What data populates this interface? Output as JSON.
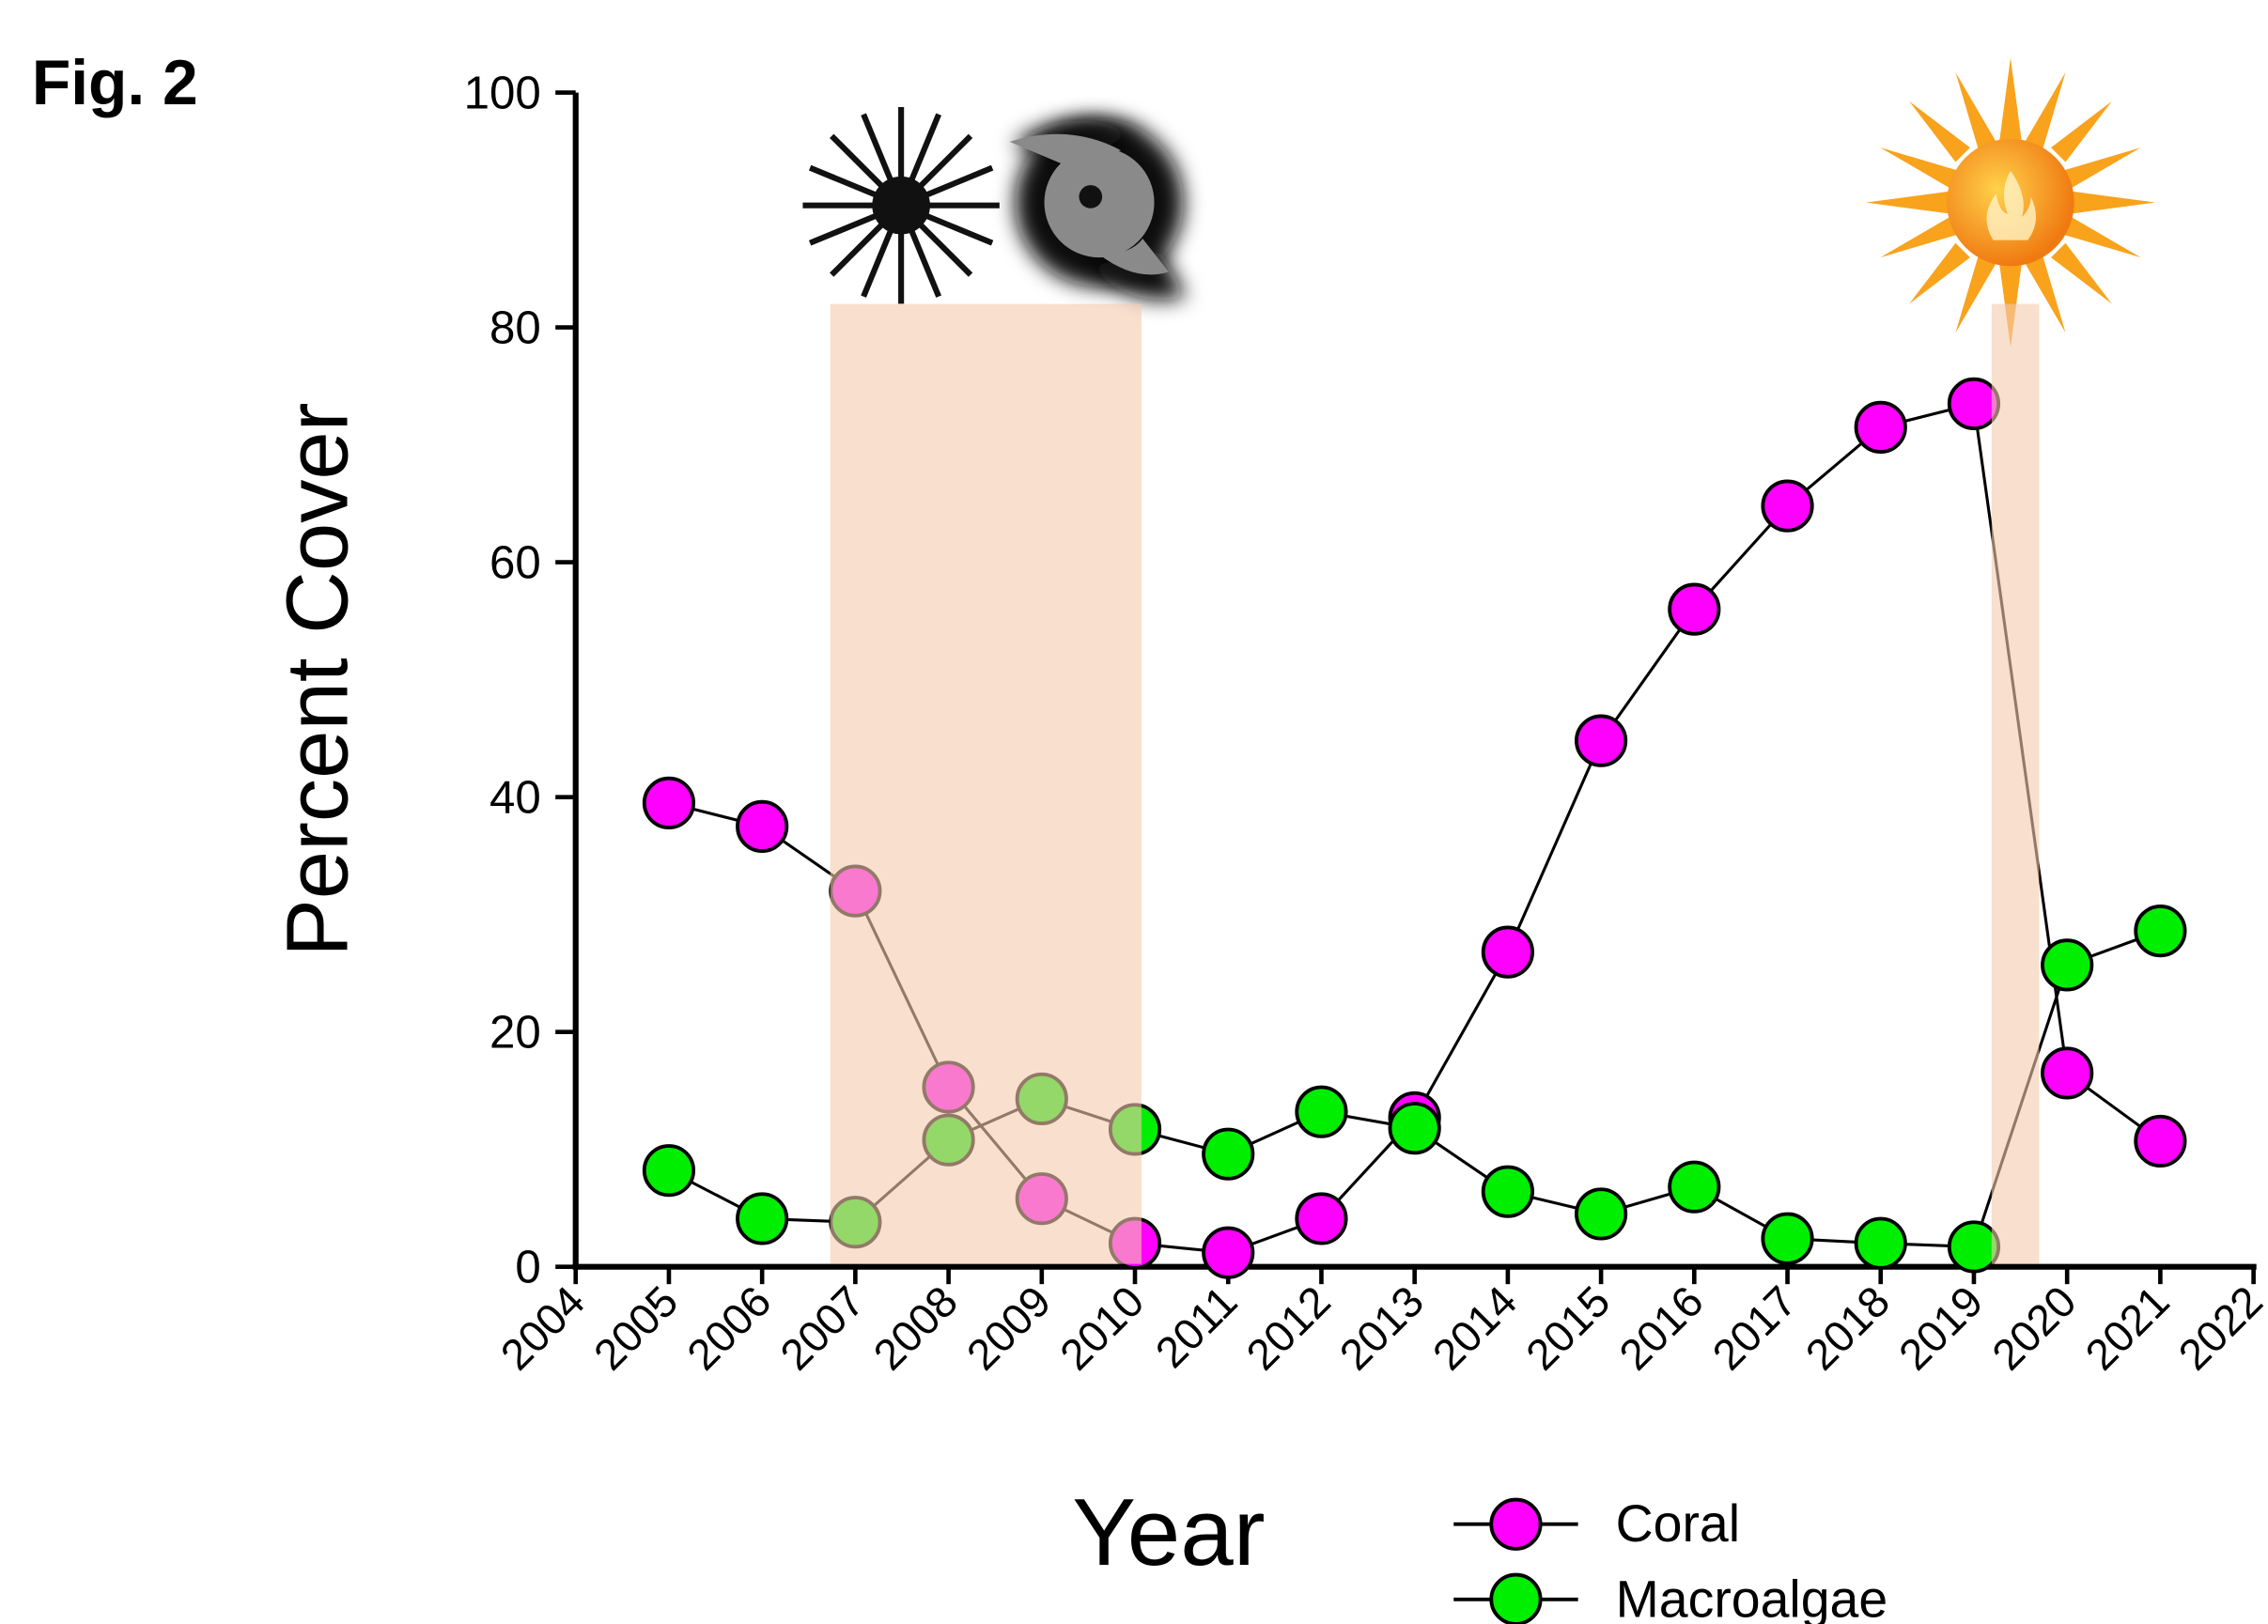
{
  "figure_label": "Fig. 2",
  "chart_data": {
    "type": "line",
    "xlabel": "Year",
    "ylabel": "Percent Cover",
    "x": [
      2005,
      2006,
      2007,
      2008,
      2009,
      2010,
      2011,
      2012,
      2013,
      2014,
      2015,
      2016,
      2017,
      2018,
      2019,
      2020,
      2021
    ],
    "series": [
      {
        "name": "Coral",
        "color": "#ff00ff",
        "values": [
          39.5,
          37.5,
          32,
          15.3,
          5.8,
          2,
          1.2,
          4.1,
          12.7,
          26.8,
          44.8,
          56,
          64.8,
          71.5,
          73.5,
          16.5,
          10.7
        ]
      },
      {
        "name": "Macroalgae",
        "color": "#00ee00",
        "values": [
          8.2,
          4.1,
          3.8,
          10.8,
          14.3,
          11.7,
          9.6,
          13.2,
          11.8,
          6.4,
          4.5,
          6.8,
          2.4,
          2,
          1.7,
          25.7,
          28.6
        ]
      }
    ],
    "shaded_regions": [
      {
        "x": [
          2006.73,
          2010.07
        ],
        "top": 82,
        "color": "#f5c9ad"
      },
      {
        "x": [
          2019.19,
          2019.7
        ],
        "top": 82,
        "color": "#f5c9ad"
      }
    ],
    "xlim": [
      2004,
      2022
    ],
    "xticks": [
      2004,
      2005,
      2006,
      2007,
      2008,
      2009,
      2010,
      2011,
      2012,
      2013,
      2014,
      2015,
      2016,
      2017,
      2018,
      2019,
      2020,
      2021,
      2022
    ],
    "ylim": [
      0,
      100
    ],
    "yticks": [
      0,
      20,
      40,
      60,
      80,
      100
    ],
    "grid": false,
    "legend": "bottom"
  }
}
